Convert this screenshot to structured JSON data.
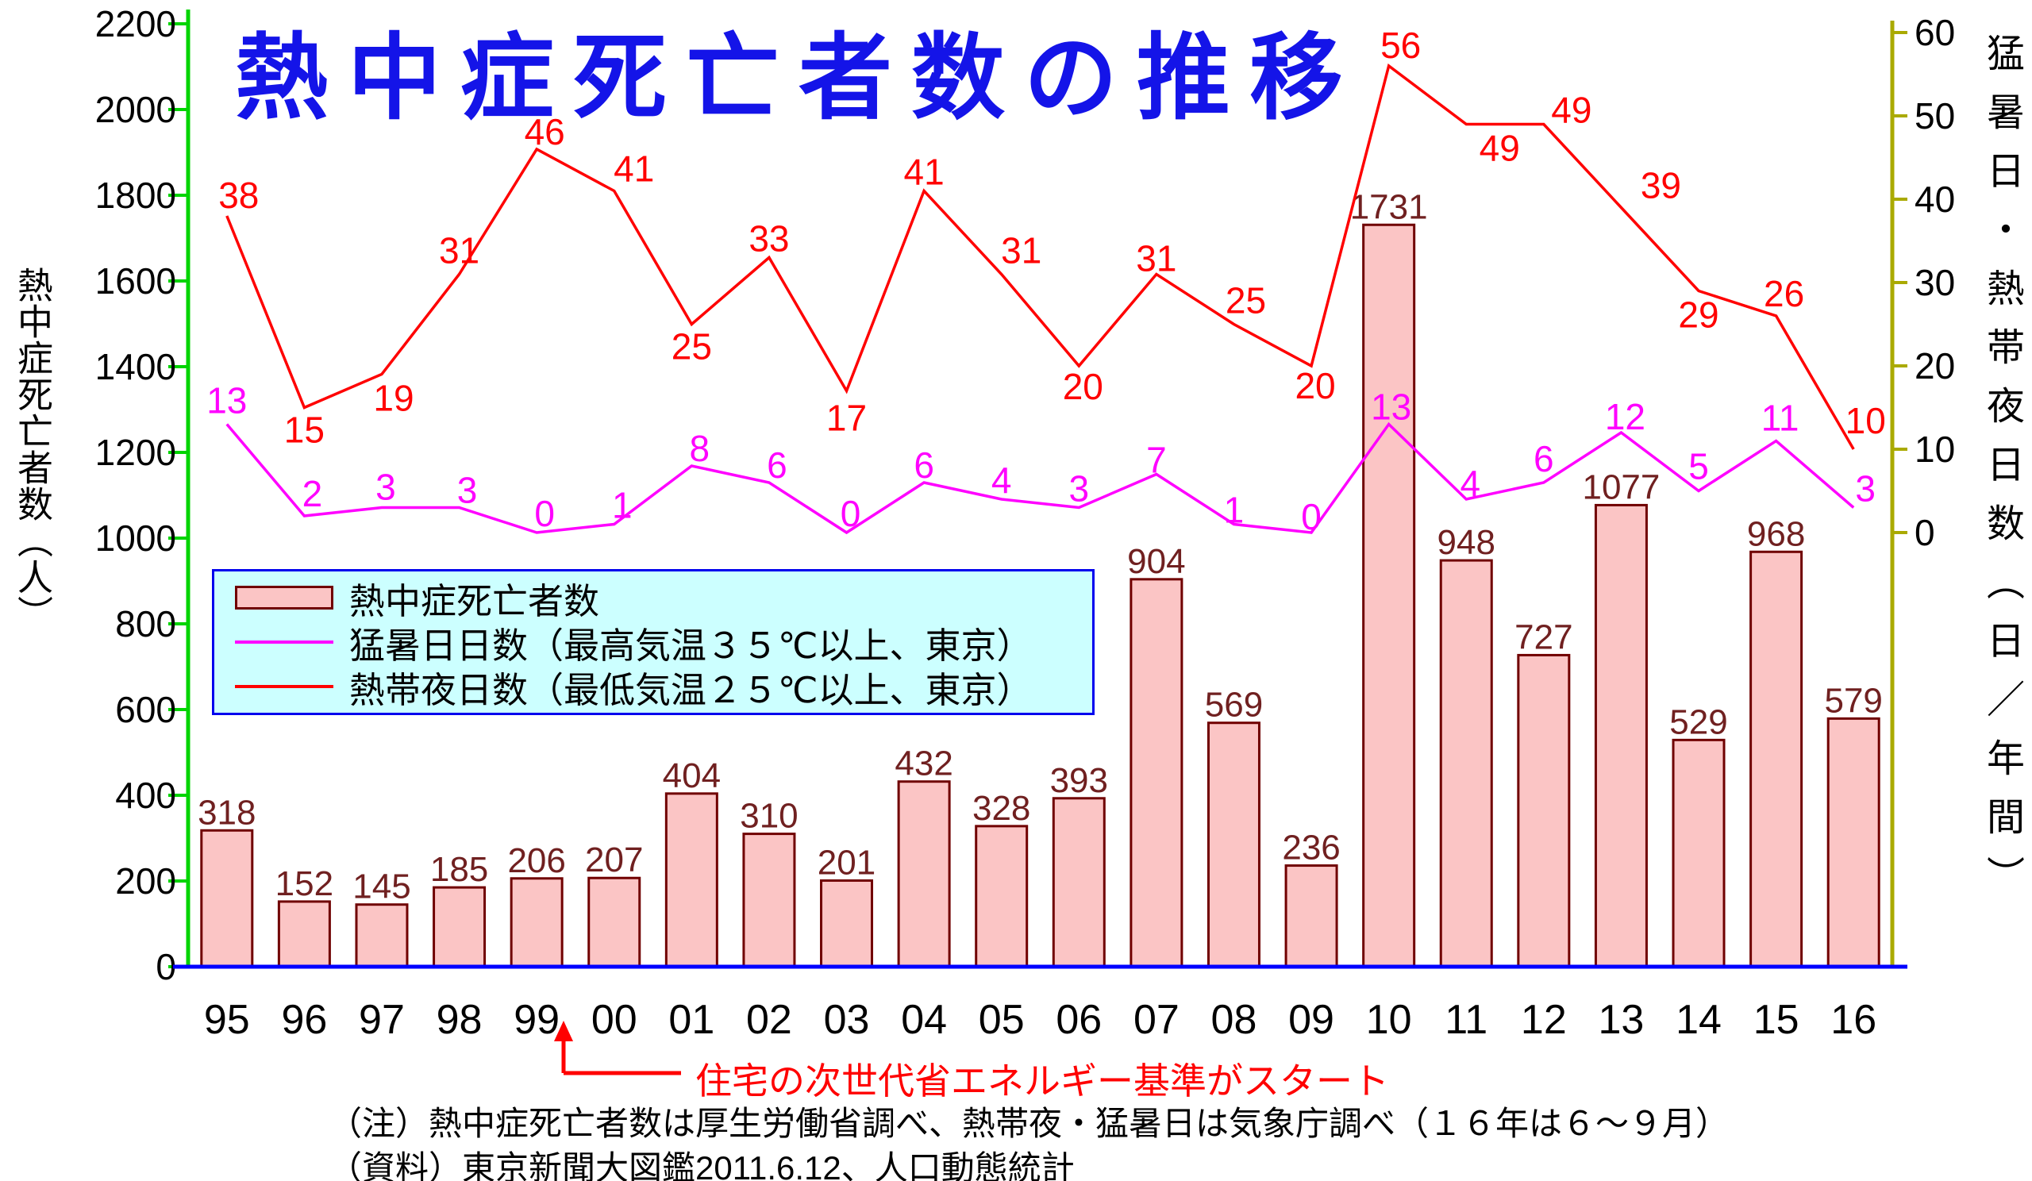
{
  "title": "熱中症死亡者数の推移",
  "colors": {
    "title": "#1414e8",
    "bar_fill": "#fbc5c5",
    "bar_border": "#700000",
    "bar_label": "#702020",
    "moushobi_line": "#ff00ff",
    "nettaiya_line": "#ff0000",
    "left_axis": "#00d400",
    "right_axis": "#aaaa00",
    "baseline": "#0000ff",
    "legend_bg": "#ccffff",
    "legend_border": "#0000ee",
    "annotation": "#ff0000",
    "text": "#000000"
  },
  "chart_data": {
    "type": "bar+line dual-axis",
    "categories": [
      "95",
      "96",
      "97",
      "98",
      "99",
      "00",
      "01",
      "02",
      "03",
      "04",
      "05",
      "06",
      "07",
      "08",
      "09",
      "10",
      "11",
      "12",
      "13",
      "14",
      "15",
      "16"
    ],
    "series": [
      {
        "name": "熱中症死亡者数",
        "type": "bar",
        "axis": "left",
        "values": [
          318,
          152,
          145,
          185,
          206,
          207,
          404,
          310,
          201,
          432,
          328,
          393,
          904,
          569,
          236,
          1731,
          948,
          727,
          1077,
          529,
          968,
          579
        ]
      },
      {
        "name": "猛暑日日数（最高気温３５℃以上、東京）",
        "type": "line",
        "axis": "right",
        "values": [
          13,
          2,
          3,
          3,
          0,
          1,
          8,
          6,
          0,
          6,
          4,
          3,
          7,
          1,
          0,
          13,
          4,
          6,
          12,
          5,
          11,
          3
        ]
      },
      {
        "name": "熱帯夜日数（最低気温２５℃以上、東京）",
        "type": "line",
        "axis": "right",
        "values": [
          38,
          15,
          19,
          31,
          46,
          41,
          25,
          33,
          17,
          41,
          31,
          20,
          31,
          25,
          20,
          56,
          49,
          49,
          39,
          29,
          26,
          10
        ]
      }
    ],
    "left_axis": {
      "label": "熱中症死亡者数（人）",
      "min": 0,
      "max": 2200,
      "tick_step": 200
    },
    "right_axis": {
      "label": "猛暑日・熱帯夜日数（日／年間）",
      "min": 0,
      "max": 60,
      "tick_step": 10
    },
    "grid": false,
    "legend_position": "inside-left-middle",
    "data_labels": "all points labeled"
  },
  "legend": {
    "items": [
      {
        "label": "熱中症死亡者数",
        "swatch": "bar"
      },
      {
        "label": "猛暑日日数（最高気温３５℃以上、東京）",
        "swatch": "magenta-line"
      },
      {
        "label": "熱帯夜日数（最低気温２５℃以上、東京）",
        "swatch": "red-line"
      }
    ]
  },
  "annotation": {
    "arrow_year": "99",
    "text": "住宅の次世代省エネルギー基準がスタート"
  },
  "notes": [
    "（注）熱中症死亡者数は厚生労働省調べ、熱帯夜・猛暑日は気象庁調べ（１６年は６～９月）",
    "（資料）東京新聞大図鑑2011.6.12、人口動態統計"
  ]
}
